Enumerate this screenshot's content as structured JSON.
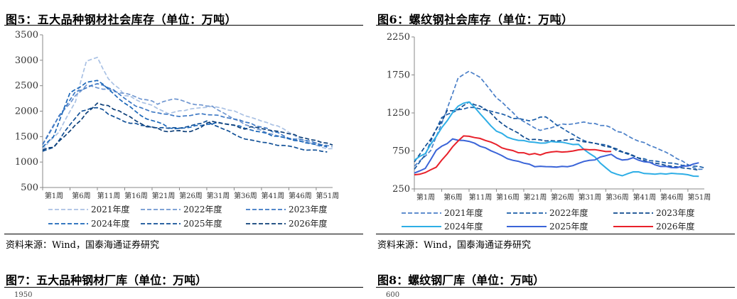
{
  "panels": [
    {
      "title": "图5：五大品种钢材社会库存（单位：万吨）",
      "source": "资料来源：Wind，国泰海通证券研究",
      "next_title": "图7：五大品种钢材厂库（单位：万吨）",
      "next_axis_top": "1950",
      "chart_data": {
        "type": "line",
        "ylim": [
          500,
          3500
        ],
        "yticks": [
          "500",
          "1000",
          "1500",
          "2000",
          "2500",
          "3000",
          "3500"
        ],
        "x_ticks": [
          "第1周",
          "第6周",
          "第11周",
          "第16周",
          "第21周",
          "第26周",
          "第31周",
          "第36周",
          "第41周",
          "第46周",
          "第51周"
        ],
        "series": [
          {
            "name": "2021年度",
            "color": "#a9c1e4",
            "dash": "6,3",
            "knots": [
              [
                1,
                1250
              ],
              [
                4,
                1600
              ],
              [
                7,
                2200
              ],
              [
                9,
                3000
              ],
              [
                11,
                3050
              ],
              [
                13,
                2650
              ],
              [
                16,
                2320
              ],
              [
                20,
                2150
              ],
              [
                24,
                1950
              ],
              [
                28,
                2050
              ],
              [
                32,
                2100
              ],
              [
                36,
                2000
              ],
              [
                40,
                1850
              ],
              [
                44,
                1700
              ],
              [
                48,
                1450
              ],
              [
                52,
                1280
              ],
              [
                54,
                1250
              ]
            ]
          },
          {
            "name": "2022年度",
            "color": "#6f96d0",
            "dash": "6,3",
            "knots": [
              [
                1,
                1350
              ],
              [
                4,
                1900
              ],
              [
                7,
                2300
              ],
              [
                9,
                2500
              ],
              [
                11,
                2450
              ],
              [
                14,
                2400
              ],
              [
                18,
                2280
              ],
              [
                22,
                2150
              ],
              [
                25,
                2250
              ],
              [
                28,
                2150
              ],
              [
                32,
                2080
              ],
              [
                36,
                1850
              ],
              [
                40,
                1650
              ],
              [
                44,
                1500
              ],
              [
                48,
                1420
              ],
              [
                52,
                1350
              ],
              [
                54,
                1300
              ]
            ]
          },
          {
            "name": "2023年度",
            "color": "#3d78c4",
            "dash": "6,3",
            "knots": [
              [
                1,
                1350
              ],
              [
                4,
                1900
              ],
              [
                7,
                2380
              ],
              [
                9,
                2450
              ],
              [
                11,
                2550
              ],
              [
                14,
                2400
              ],
              [
                18,
                2100
              ],
              [
                22,
                1950
              ],
              [
                26,
                1900
              ],
              [
                30,
                1950
              ],
              [
                34,
                1900
              ],
              [
                38,
                1780
              ],
              [
                42,
                1650
              ],
              [
                46,
                1480
              ],
              [
                50,
                1400
              ],
              [
                53,
                1300
              ]
            ]
          },
          {
            "name": "2024年度",
            "color": "#1a66b8",
            "dash": "6,3",
            "knots": [
              [
                1,
                1300
              ],
              [
                3,
                1500
              ],
              [
                6,
                2350
              ],
              [
                9,
                2550
              ],
              [
                11,
                2620
              ],
              [
                13,
                2450
              ],
              [
                16,
                2150
              ],
              [
                20,
                1850
              ],
              [
                25,
                1650
              ],
              [
                29,
                1700
              ],
              [
                33,
                1780
              ],
              [
                37,
                1700
              ],
              [
                40,
                1600
              ],
              [
                43,
                1520
              ],
              [
                47,
                1430
              ],
              [
                50,
                1350
              ],
              [
                53,
                1300
              ]
            ]
          },
          {
            "name": "2025年度",
            "color": "#104f96",
            "dash": "6,3",
            "knots": [
              [
                1,
                1200
              ],
              [
                3,
                1280
              ],
              [
                5,
                1600
              ],
              [
                8,
                1980
              ],
              [
                11,
                2080
              ],
              [
                13,
                1950
              ],
              [
                16,
                1800
              ],
              [
                20,
                1700
              ],
              [
                24,
                1650
              ],
              [
                28,
                1700
              ],
              [
                31,
                1800
              ],
              [
                35,
                1600
              ],
              [
                38,
                1450
              ],
              [
                41,
                1400
              ],
              [
                45,
                1320
              ],
              [
                49,
                1250
              ],
              [
                53,
                1200
              ]
            ]
          },
          {
            "name": "2026年度",
            "color": "#0c3e78",
            "dash": "6,3",
            "knots": [
              [
                1,
                1250
              ],
              [
                3,
                1300
              ],
              [
                6,
                1600
              ],
              [
                9,
                1950
              ],
              [
                11,
                2150
              ],
              [
                13,
                2100
              ],
              [
                16,
                1950
              ],
              [
                20,
                1700
              ],
              [
                24,
                1600
              ],
              [
                28,
                1600
              ],
              [
                32,
                1800
              ],
              [
                35,
                1750
              ],
              [
                38,
                1650
              ],
              [
                40,
                1700
              ],
              [
                44,
                1600
              ],
              [
                48,
                1500
              ],
              [
                52,
                1400
              ],
              [
                54,
                1350
              ]
            ]
          }
        ]
      }
    },
    {
      "title": "图6：螺纹钢社会库存（单位：万吨）",
      "source": "资料来源：Wind，国泰海通证券研究",
      "next_title": "图8：螺纹钢厂库（单位：万吨）",
      "next_axis_top": "600",
      "chart_data": {
        "type": "line",
        "ylim": [
          250,
          2250
        ],
        "yticks": [
          "250",
          "750",
          "1250",
          "1750",
          "2250"
        ],
        "x_ticks": [
          "第1周",
          "第6周",
          "第11周",
          "第16周",
          "第21周",
          "第26周",
          "第31周",
          "第36周",
          "第41周",
          "第46周",
          "第51周"
        ],
        "series": [
          {
            "name": "2021年度",
            "color": "#4a7fc8",
            "dash": "6,3",
            "knots": [
              [
                1,
                550
              ],
              [
                4,
                750
              ],
              [
                7,
                1300
              ],
              [
                9,
                1700
              ],
              [
                11,
                1800
              ],
              [
                13,
                1720
              ],
              [
                16,
                1450
              ],
              [
                20,
                1180
              ],
              [
                24,
                1020
              ],
              [
                28,
                1100
              ],
              [
                32,
                1120
              ],
              [
                36,
                1080
              ],
              [
                40,
                950
              ],
              [
                44,
                820
              ],
              [
                48,
                700
              ],
              [
                52,
                520
              ],
              [
                54,
                500
              ]
            ]
          },
          {
            "name": "2022年度",
            "color": "#1a5da8",
            "dash": "6,3",
            "knots": [
              [
                1,
                500
              ],
              [
                3,
                700
              ],
              [
                6,
                1200
              ],
              [
                9,
                1300
              ],
              [
                11,
                1320
              ],
              [
                14,
                1300
              ],
              [
                18,
                1200
              ],
              [
                22,
                1150
              ],
              [
                25,
                1200
              ],
              [
                28,
                1050
              ],
              [
                32,
                880
              ],
              [
                36,
                820
              ],
              [
                40,
                700
              ],
              [
                44,
                620
              ],
              [
                48,
                580
              ],
              [
                52,
                550
              ],
              [
                54,
                520
              ]
            ]
          },
          {
            "name": "2023年度",
            "color": "#0e4a8f",
            "dash": "6,3",
            "knots": [
              [
                1,
                600
              ],
              [
                4,
                900
              ],
              [
                7,
                1270
              ],
              [
                9,
                1300
              ],
              [
                11,
                1400
              ],
              [
                14,
                1300
              ],
              [
                18,
                1050
              ],
              [
                22,
                900
              ],
              [
                26,
                880
              ],
              [
                30,
                900
              ],
              [
                34,
                850
              ],
              [
                38,
                780
              ],
              [
                42,
                650
              ],
              [
                46,
                570
              ],
              [
                50,
                530
              ],
              [
                53,
                500
              ]
            ]
          },
          {
            "name": "2024年度",
            "color": "#2eaee6",
            "dash": "",
            "knots": [
              [
                1,
                620
              ],
              [
                3,
                720
              ],
              [
                6,
                1050
              ],
              [
                9,
                1350
              ],
              [
                11,
                1400
              ],
              [
                13,
                1250
              ],
              [
                16,
                1000
              ],
              [
                20,
                880
              ],
              [
                24,
                860
              ],
              [
                28,
                870
              ],
              [
                31,
                830
              ],
              [
                33,
                720
              ],
              [
                35,
                600
              ],
              [
                37,
                480
              ],
              [
                39,
                420
              ],
              [
                41,
                470
              ],
              [
                45,
                450
              ],
              [
                49,
                460
              ],
              [
                53,
                420
              ]
            ]
          },
          {
            "name": "2025年度",
            "color": "#3a64d8",
            "dash": "",
            "knots": [
              [
                1,
                450
              ],
              [
                3,
                520
              ],
              [
                5,
                750
              ],
              [
                8,
                900
              ],
              [
                11,
                880
              ],
              [
                14,
                780
              ],
              [
                17,
                680
              ],
              [
                21,
                580
              ],
              [
                24,
                540
              ],
              [
                28,
                540
              ],
              [
                31,
                580
              ],
              [
                34,
                640
              ],
              [
                37,
                700
              ],
              [
                39,
                620
              ],
              [
                41,
                650
              ],
              [
                45,
                570
              ],
              [
                49,
                520
              ],
              [
                53,
                600
              ]
            ]
          },
          {
            "name": "2026年度",
            "color": "#e8202a",
            "dash": "",
            "knots": [
              [
                1,
                440
              ],
              [
                3,
                470
              ],
              [
                5,
                540
              ],
              [
                8,
                800
              ],
              [
                10,
                940
              ],
              [
                12,
                930
              ],
              [
                15,
                860
              ],
              [
                18,
                760
              ],
              [
                21,
                720
              ],
              [
                24,
                700
              ],
              [
                26,
                730
              ],
              [
                29,
                740
              ],
              [
                32,
                770
              ],
              [
                34,
                760
              ],
              [
                37,
                740
              ]
            ]
          }
        ]
      }
    }
  ]
}
